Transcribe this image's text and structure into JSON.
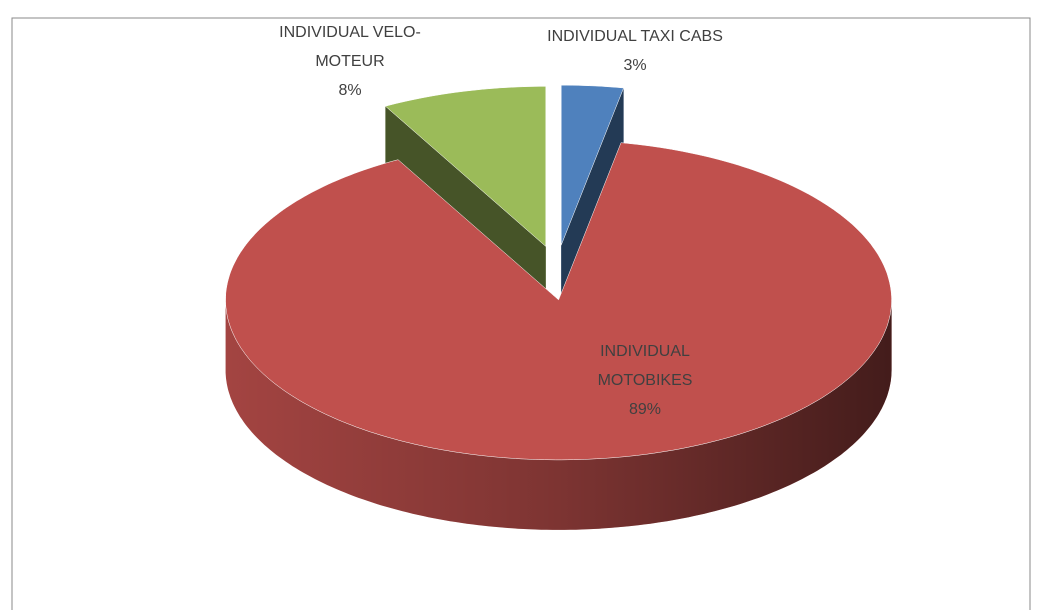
{
  "chart_data": {
    "type": "pie",
    "categories": [
      "INDIVIDUAL TAXI CABS",
      "INDIVIDUAL MOTOBIKES",
      "INDIVIDUAL VELO-MOTEUR"
    ],
    "values": [
      3,
      89,
      8
    ],
    "value_labels": [
      "3%",
      "89%",
      "8%"
    ],
    "colors": [
      "#4f81bd",
      "#c0504d",
      "#9bbb59"
    ]
  }
}
